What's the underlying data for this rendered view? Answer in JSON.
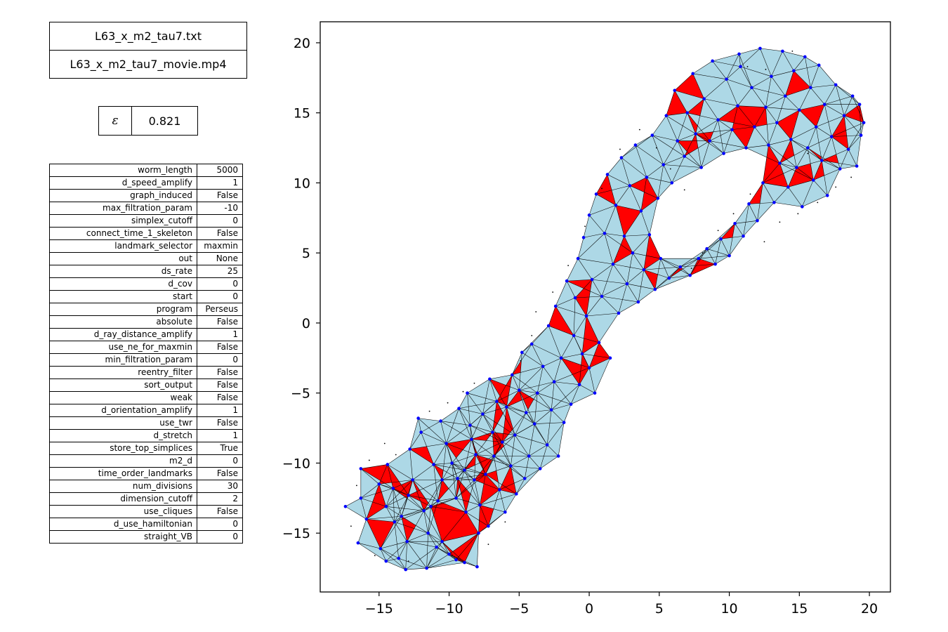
{
  "files": {
    "data_file": "L63_x_m2_tau7.txt",
    "movie_file": "L63_x_m2_tau7_movie.mp4"
  },
  "epsilon": {
    "symbol": "ε",
    "value": "0.821"
  },
  "params": [
    {
      "key": "worm_length",
      "value": "5000"
    },
    {
      "key": "d_speed_amplify",
      "value": "1"
    },
    {
      "key": "graph_induced",
      "value": "False"
    },
    {
      "key": "max_filtration_param",
      "value": "-10"
    },
    {
      "key": "simplex_cutoff",
      "value": "0"
    },
    {
      "key": "connect_time_1_skeleton",
      "value": "False"
    },
    {
      "key": "landmark_selector",
      "value": "maxmin"
    },
    {
      "key": "out",
      "value": "None"
    },
    {
      "key": "ds_rate",
      "value": "25"
    },
    {
      "key": "d_cov",
      "value": "0"
    },
    {
      "key": "start",
      "value": "0"
    },
    {
      "key": "program",
      "value": "Perseus"
    },
    {
      "key": "absolute",
      "value": "False"
    },
    {
      "key": "d_ray_distance_amplify",
      "value": "1"
    },
    {
      "key": "use_ne_for_maxmin",
      "value": "False"
    },
    {
      "key": "min_filtration_param",
      "value": "0"
    },
    {
      "key": "reentry_filter",
      "value": "False"
    },
    {
      "key": "sort_output",
      "value": "False"
    },
    {
      "key": "weak",
      "value": "False"
    },
    {
      "key": "d_orientation_amplify",
      "value": "1"
    },
    {
      "key": "use_twr",
      "value": "False"
    },
    {
      "key": "d_stretch",
      "value": "1"
    },
    {
      "key": "store_top_simplices",
      "value": "True"
    },
    {
      "key": "m2_d",
      "value": "0"
    },
    {
      "key": "time_order_landmarks",
      "value": "False"
    },
    {
      "key": "num_divisions",
      "value": "30"
    },
    {
      "key": "dimension_cutoff",
      "value": "2"
    },
    {
      "key": "use_cliques",
      "value": "False"
    },
    {
      "key": "d_use_hamiltonian",
      "value": "0"
    },
    {
      "key": "straight_VB",
      "value": "0"
    }
  ],
  "chart_data": {
    "type": "scatter",
    "title": "",
    "xlabel": "",
    "ylabel": "",
    "xlim": [
      -19.2,
      21.5
    ],
    "ylim": [
      -19.2,
      21.5
    ],
    "xticks": [
      -15,
      -10,
      -5,
      0,
      5,
      10,
      15,
      20
    ],
    "yticks": [
      -15,
      -10,
      -5,
      0,
      5,
      10,
      15,
      20
    ],
    "xtick_labels": [
      "−15",
      "−10",
      "−5",
      "0",
      "5",
      "10",
      "15",
      "20"
    ],
    "ytick_labels": [
      "−15",
      "−10",
      "−5",
      "0",
      "5",
      "10",
      "15",
      "20"
    ],
    "grid": false,
    "colors": {
      "simplex_fill": "#add8e6",
      "top_simplex_fill": "#ff0000",
      "edge": "#000000",
      "landmark": "#0000ff",
      "witness": "#000000"
    },
    "landmarks": [
      [
        -17.4,
        -13.1
      ],
      [
        -16.5,
        -15.7
      ],
      [
        -16.3,
        -12.5
      ],
      [
        -16.3,
        -10.4
      ],
      [
        -15.9,
        -14.0
      ],
      [
        -15.0,
        -11.5
      ],
      [
        -14.9,
        -16.1
      ],
      [
        -14.5,
        -17.0
      ],
      [
        -14.5,
        -13.1
      ],
      [
        -14.4,
        -10.1
      ],
      [
        -14.0,
        -11.8
      ],
      [
        -13.9,
        -14.2
      ],
      [
        -13.6,
        -16.8
      ],
      [
        -13.4,
        -13.8
      ],
      [
        -13.1,
        -17.6
      ],
      [
        -13.0,
        -15.6
      ],
      [
        -12.9,
        -12.3
      ],
      [
        -12.8,
        -9.0
      ],
      [
        -12.6,
        -11.2
      ],
      [
        -12.2,
        -6.8
      ],
      [
        -12.0,
        -7.8
      ],
      [
        -11.8,
        -13.4
      ],
      [
        -11.6,
        -17.5
      ],
      [
        -11.5,
        -15.0
      ],
      [
        -11.3,
        -13.1
      ],
      [
        -11.1,
        -10.1
      ],
      [
        -10.9,
        -16.0
      ],
      [
        -10.8,
        -12.7
      ],
      [
        -10.6,
        -7.0
      ],
      [
        -10.5,
        -15.6
      ],
      [
        -10.5,
        -11.2
      ],
      [
        -10.2,
        -8.6
      ],
      [
        -10.0,
        -16.5
      ],
      [
        -9.8,
        -10.0
      ],
      [
        -9.5,
        -16.9
      ],
      [
        -9.5,
        -12.5
      ],
      [
        -9.4,
        -11.1
      ],
      [
        -9.3,
        -6.1
      ],
      [
        -8.9,
        -17.1
      ],
      [
        -8.9,
        -10.5
      ],
      [
        -8.8,
        -13.5
      ],
      [
        -8.7,
        -5.0
      ],
      [
        -8.5,
        -7.3
      ],
      [
        -8.4,
        -8.3
      ],
      [
        -8.2,
        -11.2
      ],
      [
        -8.1,
        -9.4
      ],
      [
        -8.0,
        -17.4
      ],
      [
        -7.9,
        -15.0
      ],
      [
        -7.8,
        -13.0
      ],
      [
        -7.6,
        -6.5
      ],
      [
        -7.4,
        -10.8
      ],
      [
        -7.2,
        -14.5
      ],
      [
        -7.1,
        -4.0
      ],
      [
        -6.9,
        -7.8
      ],
      [
        -6.8,
        -9.5
      ],
      [
        -6.6,
        -5.6
      ],
      [
        -6.4,
        -11.9
      ],
      [
        -6.2,
        -8.5
      ],
      [
        -6.0,
        -13.5
      ],
      [
        -5.9,
        -6.0
      ],
      [
        -5.6,
        -10.2
      ],
      [
        -5.5,
        -3.7
      ],
      [
        -5.3,
        -8.0
      ],
      [
        -5.2,
        -12.2
      ],
      [
        -5.0,
        -4.8
      ],
      [
        -4.8,
        -2.1
      ],
      [
        -4.6,
        -11.1
      ],
      [
        -4.5,
        -6.4
      ],
      [
        -4.3,
        -9.5
      ],
      [
        -4.1,
        -1.5
      ],
      [
        -3.9,
        -7.2
      ],
      [
        -3.7,
        -5.0
      ],
      [
        -3.5,
        -10.4
      ],
      [
        -3.3,
        -3.1
      ],
      [
        -3.0,
        -8.7
      ],
      [
        -2.9,
        -0.2
      ],
      [
        -2.7,
        -6.2
      ],
      [
        -2.5,
        -4.2
      ],
      [
        -2.4,
        1.2
      ],
      [
        -2.2,
        -9.5
      ],
      [
        -2.0,
        -2.5
      ],
      [
        -1.8,
        -7.1
      ],
      [
        -1.6,
        3.0
      ],
      [
        -1.3,
        -5.8
      ],
      [
        -1.1,
        -0.9
      ],
      [
        -1.0,
        1.8
      ],
      [
        -0.8,
        4.6
      ],
      [
        -0.7,
        -4.4
      ],
      [
        -0.5,
        -2.2
      ],
      [
        -0.4,
        6.1
      ],
      [
        -0.2,
        0.5
      ],
      [
        0.0,
        -3.2
      ],
      [
        0.0,
        7.7
      ],
      [
        0.2,
        3.1
      ],
      [
        0.4,
        -5.0
      ],
      [
        0.5,
        9.2
      ],
      [
        0.7,
        -1.4
      ],
      [
        0.9,
        1.9
      ],
      [
        1.1,
        6.4
      ],
      [
        1.3,
        10.6
      ],
      [
        1.5,
        -2.5
      ],
      [
        1.7,
        4.2
      ],
      [
        1.9,
        8.4
      ],
      [
        2.1,
        0.7
      ],
      [
        2.3,
        11.8
      ],
      [
        2.5,
        6.2
      ],
      [
        2.7,
        2.8
      ],
      [
        2.9,
        9.8
      ],
      [
        3.1,
        5.0
      ],
      [
        3.3,
        12.7
      ],
      [
        3.5,
        1.5
      ],
      [
        3.7,
        8.0
      ],
      [
        3.9,
        3.8
      ],
      [
        4.1,
        10.4
      ],
      [
        4.3,
        6.3
      ],
      [
        4.5,
        13.4
      ],
      [
        4.7,
        2.4
      ],
      [
        4.9,
        8.9
      ],
      [
        5.1,
        4.6
      ],
      [
        5.3,
        11.3
      ],
      [
        5.5,
        14.8
      ],
      [
        5.7,
        3.2
      ],
      [
        5.9,
        10.0
      ],
      [
        6.1,
        16.6
      ],
      [
        6.3,
        13.0
      ],
      [
        6.5,
        4.0
      ],
      [
        6.8,
        11.9
      ],
      [
        7.0,
        15.0
      ],
      [
        7.2,
        3.4
      ],
      [
        7.4,
        17.8
      ],
      [
        7.6,
        13.5
      ],
      [
        7.8,
        4.6
      ],
      [
        8.0,
        11.1
      ],
      [
        8.2,
        16.0
      ],
      [
        8.4,
        5.3
      ],
      [
        8.6,
        13.0
      ],
      [
        8.8,
        18.7
      ],
      [
        9.0,
        4.2
      ],
      [
        9.2,
        14.5
      ],
      [
        9.4,
        6.0
      ],
      [
        9.6,
        12.1
      ],
      [
        9.8,
        17.4
      ],
      [
        10.0,
        4.8
      ],
      [
        10.2,
        13.8
      ],
      [
        10.4,
        7.1
      ],
      [
        10.6,
        15.5
      ],
      [
        10.8,
        18.3
      ],
      [
        11.0,
        6.2
      ],
      [
        11.2,
        12.5
      ],
      [
        11.4,
        8.5
      ],
      [
        11.6,
        16.8
      ],
      [
        11.8,
        14.0
      ],
      [
        12.0,
        7.3
      ],
      [
        12.2,
        19.6
      ],
      [
        12.4,
        10.0
      ],
      [
        12.6,
        15.4
      ],
      [
        12.8,
        12.7
      ],
      [
        13.0,
        17.6
      ],
      [
        13.2,
        8.6
      ],
      [
        13.4,
        14.3
      ],
      [
        13.6,
        11.4
      ],
      [
        13.8,
        19.4
      ],
      [
        14.0,
        16.2
      ],
      [
        14.2,
        9.7
      ],
      [
        14.4,
        13.1
      ],
      [
        14.6,
        18.0
      ],
      [
        14.8,
        11.1
      ],
      [
        15.0,
        15.2
      ],
      [
        15.2,
        8.3
      ],
      [
        15.4,
        19.0
      ],
      [
        15.6,
        12.5
      ],
      [
        15.8,
        16.8
      ],
      [
        16.0,
        10.2
      ],
      [
        16.2,
        14.0
      ],
      [
        16.4,
        18.4
      ],
      [
        16.6,
        11.6
      ],
      [
        16.8,
        15.6
      ],
      [
        17.0,
        9.1
      ],
      [
        17.3,
        13.3
      ],
      [
        17.6,
        17.0
      ],
      [
        17.9,
        11.0
      ],
      [
        18.2,
        14.8
      ],
      [
        18.5,
        12.4
      ],
      [
        18.8,
        16.2
      ],
      [
        19.1,
        11.2
      ],
      [
        19.4,
        13.4
      ],
      [
        19.6,
        14.3
      ],
      [
        10.7,
        19.2
      ],
      [
        19.3,
        15.6
      ]
    ],
    "witness_points": [
      [
        -17.0,
        -14.5
      ],
      [
        -16.6,
        -11.6
      ],
      [
        -15.7,
        -9.8
      ],
      [
        -15.3,
        -16.6
      ],
      [
        -14.6,
        -8.6
      ],
      [
        -13.8,
        -9.4
      ],
      [
        -12.9,
        -17.0
      ],
      [
        -11.4,
        -6.3
      ],
      [
        -10.1,
        -5.7
      ],
      [
        -9.0,
        -4.9
      ],
      [
        -8.2,
        -4.3
      ],
      [
        -7.2,
        -15.8
      ],
      [
        -6.0,
        -14.2
      ],
      [
        -4.9,
        -2.7
      ],
      [
        -4.1,
        -0.9
      ],
      [
        -3.8,
        0.8
      ],
      [
        -2.6,
        2.2
      ],
      [
        -1.5,
        4.1
      ],
      [
        -0.3,
        6.9
      ],
      [
        0.9,
        9.6
      ],
      [
        2.2,
        12.4
      ],
      [
        3.6,
        13.8
      ],
      [
        4.8,
        12.5
      ],
      [
        5.8,
        11.0
      ],
      [
        6.8,
        9.5
      ],
      [
        7.3,
        3.9
      ],
      [
        8.1,
        5.0
      ],
      [
        9.2,
        6.6
      ],
      [
        10.3,
        7.8
      ],
      [
        11.5,
        9.2
      ],
      [
        12.5,
        5.8
      ],
      [
        13.6,
        7.2
      ],
      [
        14.9,
        7.8
      ],
      [
        16.3,
        8.6
      ],
      [
        17.6,
        9.7
      ],
      [
        18.7,
        10.4
      ],
      [
        11.3,
        18.3
      ],
      [
        12.6,
        18.1
      ],
      [
        14.5,
        19.4
      ],
      [
        15.6,
        12.1
      ]
    ]
  }
}
